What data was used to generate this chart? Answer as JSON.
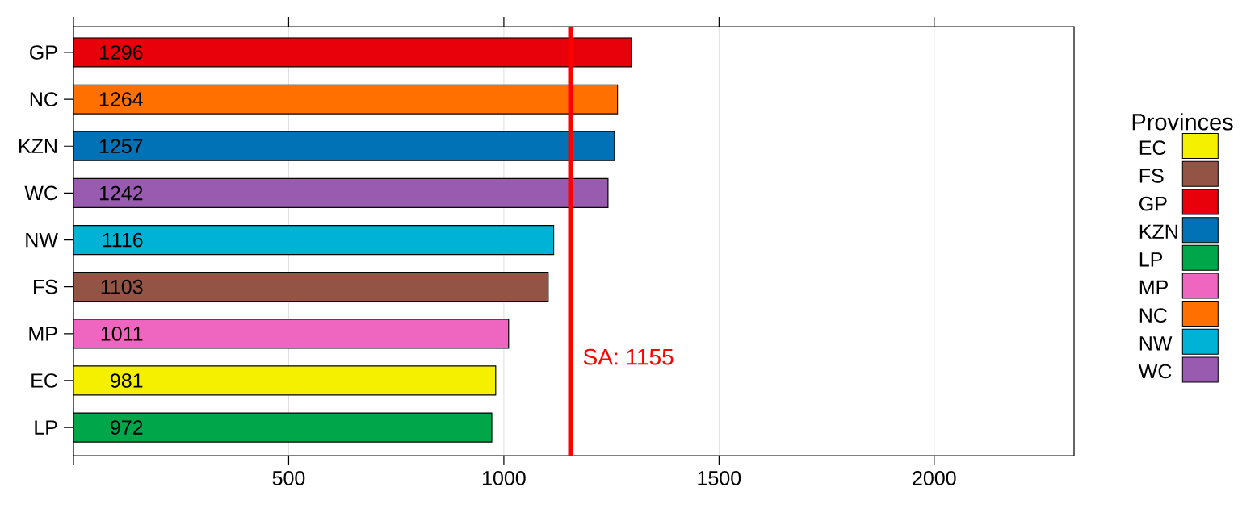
{
  "chart_data": {
    "type": "bar",
    "orientation": "horizontal",
    "categories": [
      "GP",
      "NC",
      "KZN",
      "WC",
      "NW",
      "FS",
      "MP",
      "EC",
      "LP"
    ],
    "series": [
      {
        "name": "EC",
        "color": "#f5f000",
        "values": [
          null,
          null,
          null,
          null,
          null,
          null,
          null,
          981,
          null
        ]
      },
      {
        "name": "FS",
        "color": "#935446",
        "values": [
          null,
          null,
          null,
          null,
          null,
          1103,
          null,
          null,
          null
        ]
      },
      {
        "name": "GP",
        "color": "#e8000b",
        "values": [
          1296,
          null,
          null,
          null,
          null,
          null,
          null,
          null,
          null
        ]
      },
      {
        "name": "KZN",
        "color": "#0072b5",
        "values": [
          null,
          null,
          1257,
          null,
          null,
          null,
          null,
          null,
          null
        ]
      },
      {
        "name": "LP",
        "color": "#00a64a",
        "values": [
          null,
          null,
          null,
          null,
          null,
          null,
          null,
          null,
          972
        ]
      },
      {
        "name": "MP",
        "color": "#ee66c0",
        "values": [
          null,
          null,
          null,
          null,
          null,
          null,
          1011,
          null,
          null
        ]
      },
      {
        "name": "NC",
        "color": "#ff7000",
        "values": [
          null,
          1264,
          null,
          null,
          null,
          null,
          null,
          null,
          null
        ]
      },
      {
        "name": "NW",
        "color": "#00b2d6",
        "values": [
          null,
          null,
          null,
          null,
          1116,
          null,
          null,
          null,
          null
        ]
      },
      {
        "name": "WC",
        "color": "#985bb0",
        "values": [
          null,
          null,
          null,
          1242,
          null,
          null,
          null,
          null,
          null
        ]
      }
    ],
    "xlim": [
      0,
      2325
    ],
    "xticks": [
      {
        "value": 0,
        "label": null
      },
      500,
      1000,
      1500,
      2000
    ],
    "grid": "x",
    "data_labels": true,
    "legend": "right",
    "legend_title": "Provinces",
    "ref_lines": [
      {
        "axis": "x",
        "value": 1155,
        "label": "SA: 1155",
        "color": "#ff0000"
      }
    ]
  }
}
